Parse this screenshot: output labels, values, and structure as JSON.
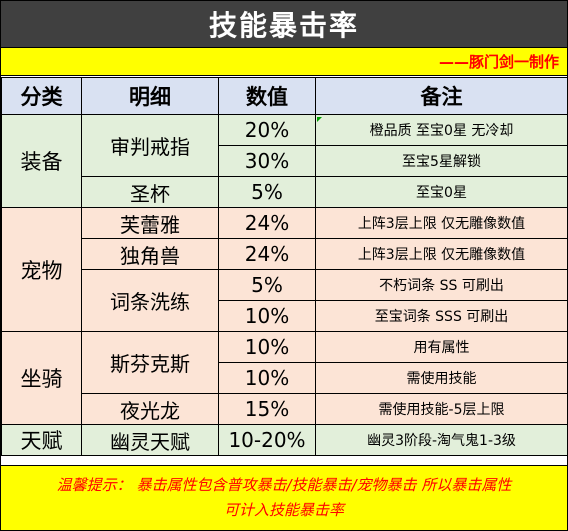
{
  "title": "技能暴击率",
  "credit": "——豚门剑一制作",
  "headers": [
    "分类",
    "明细",
    "数值",
    "备注"
  ],
  "categories": {
    "equip": "装备",
    "pet": "宠物",
    "mount": "坐骑",
    "talent": "天赋"
  },
  "rows": [
    {
      "detail": "审判戒指",
      "value": "20%",
      "note": "橙品质 至宝0星 无冷却"
    },
    {
      "detail": "",
      "value": "30%",
      "note": "至宝5星解锁"
    },
    {
      "detail": "圣杯",
      "value": "5%",
      "note": "至宝0星"
    },
    {
      "detail": "芙蕾雅",
      "value": "24%",
      "note": "上阵3层上限 仅无雕像数值"
    },
    {
      "detail": "独角兽",
      "value": "24%",
      "note": "上阵3层上限 仅无雕像数值"
    },
    {
      "detail": "词条洗练",
      "value": "5%",
      "note": "不朽词条 SS 可刷出"
    },
    {
      "detail": "",
      "value": "10%",
      "note": "至宝词条 SSS 可刷出"
    },
    {
      "detail": "斯芬克斯",
      "value": "10%",
      "note": "用有属性"
    },
    {
      "detail": "",
      "value": "10%",
      "note": "需使用技能"
    },
    {
      "detail": "夜光龙",
      "value": "15%",
      "note": "需使用技能-5层上限"
    },
    {
      "detail": "幽灵天赋",
      "value": "10-20%",
      "note": "幽灵3阶段-淘气鬼1-3级"
    }
  ],
  "footer": {
    "line1": "温馨提示： 暴击属性包含普攻暴击/技能暴击/宠物暴击 所以暴击属性",
    "line2": "可计入技能暴击率"
  },
  "colors": {
    "title_bg": "#404040",
    "header_bg": "#d9e1f2",
    "equip_bg": "#e2efda",
    "pet_bg": "#fce4d6",
    "highlight": "#ffff00",
    "note_text": "#ff0000"
  }
}
